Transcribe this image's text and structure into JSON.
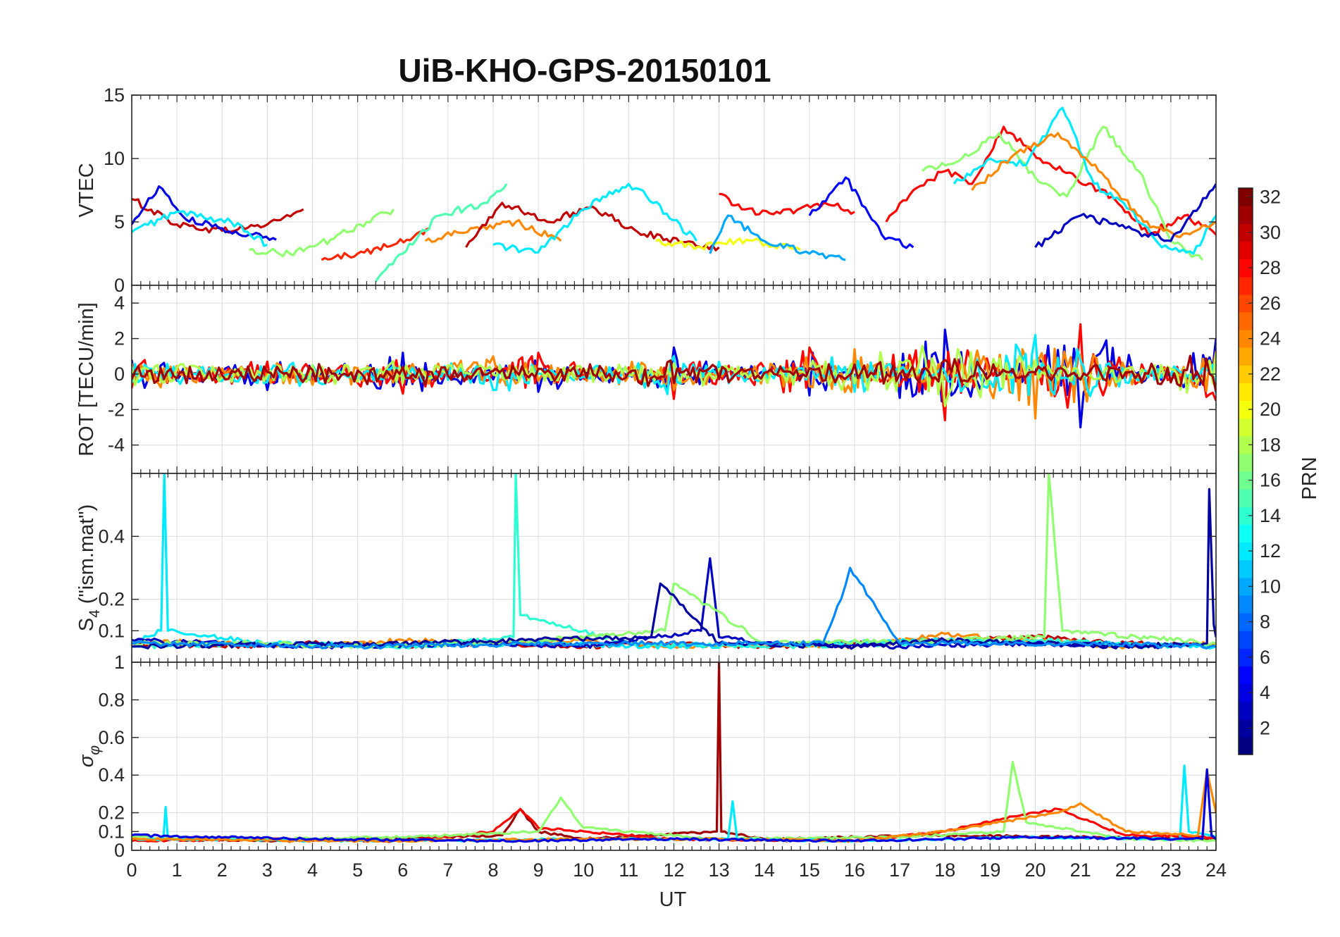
{
  "chart_data": {
    "type": "line",
    "title": "UiB-KHO-GPS-20150101",
    "xlabel": "UT",
    "xlim": [
      0,
      24
    ],
    "xticks": [
      0,
      1,
      2,
      3,
      4,
      5,
      6,
      7,
      8,
      9,
      10,
      11,
      12,
      13,
      14,
      15,
      16,
      17,
      18,
      19,
      20,
      21,
      22,
      23,
      24
    ],
    "grid": true,
    "colorbar": {
      "label": "PRN",
      "range": [
        1,
        32
      ],
      "ticks": [
        2,
        4,
        6,
        8,
        10,
        12,
        14,
        16,
        18,
        20,
        22,
        24,
        26,
        28,
        30,
        32
      ],
      "colormap": "jet"
    },
    "panels": [
      {
        "id": "vtec",
        "ylabel": "VTEC",
        "ylim": [
          0,
          15
        ],
        "yticks": [
          0,
          5,
          10,
          15
        ],
        "baseline": 4.5,
        "series": [
          {
            "x": [
              0,
              1,
              2,
              3,
              3.8
            ],
            "y": [
              6.8,
              4.8,
              4.3,
              4.8,
              6.0
            ],
            "prn": 30
          },
          {
            "x": [
              0,
              0.6,
              1.2,
              2,
              2.6,
              3.2
            ],
            "y": [
              4.8,
              7.8,
              5.2,
              4.5,
              4.0,
              3.6
            ],
            "prn": 4
          },
          {
            "x": [
              0,
              1,
              2.2,
              3
            ],
            "y": [
              4.2,
              5.8,
              5.0,
              3.2
            ],
            "prn": 12
          },
          {
            "x": [
              2.6,
              3.5,
              4.4,
              5.2,
              5.8
            ],
            "y": [
              2.8,
              2.5,
              3.6,
              5.0,
              6.0
            ],
            "prn": 17
          },
          {
            "x": [
              4.2,
              5,
              5.8,
              6.6
            ],
            "y": [
              2.0,
              2.5,
              3.2,
              4.5
            ],
            "prn": 27
          },
          {
            "x": [
              5.4,
              6,
              6.8,
              7.8,
              8.3
            ],
            "y": [
              0.3,
              2.5,
              5.5,
              6.5,
              8.0
            ],
            "prn": 15
          },
          {
            "x": [
              6.5,
              7.5,
              8.5,
              9.5
            ],
            "y": [
              3.5,
              4.5,
              5.0,
              3.5
            ],
            "prn": 24
          },
          {
            "x": [
              7.4,
              8.2,
              9.2,
              10.2,
              11.2,
              12.2,
              13
            ],
            "y": [
              3.0,
              6.5,
              5.0,
              6.2,
              4.2,
              3.4,
              3.0
            ],
            "prn": 30
          },
          {
            "x": [
              8,
              9,
              10,
              11,
              11.4,
              12.5
            ],
            "y": [
              3.2,
              2.6,
              6.0,
              8.0,
              7.0,
              3.5
            ],
            "prn": 12
          },
          {
            "x": [
              11.6,
              12.6,
              13.6,
              14.8
            ],
            "y": [
              3.5,
              3.0,
              3.6,
              2.8
            ],
            "prn": 20
          },
          {
            "x": [
              12.8,
              13.2,
              14,
              15,
              15.8
            ],
            "y": [
              2.5,
              5.5,
              3.5,
              2.5,
              2.0
            ],
            "prn": 10
          },
          {
            "x": [
              13,
              13.5,
              14.2,
              15.4,
              16
            ],
            "y": [
              7.2,
              6.0,
              5.6,
              6.4,
              5.8
            ],
            "prn": 28
          },
          {
            "x": [
              15,
              15.8,
              16.6,
              17.3
            ],
            "y": [
              5.5,
              8.5,
              4.0,
              3.0
            ],
            "prn": 5
          },
          {
            "x": [
              16.7,
              17.3,
              18,
              18.6,
              19.3,
              20.1,
              20.9,
              21.7,
              22.5,
              23.3,
              24
            ],
            "y": [
              5.0,
              7.5,
              9.0,
              8.0,
              12.5,
              10.0,
              8.5,
              7.0,
              4.0,
              5.5,
              4.0
            ],
            "prn": 28
          },
          {
            "x": [
              17.5,
              18.3,
              19.2,
              20,
              20.7,
              21.5,
              22.3,
              23,
              23.7
            ],
            "y": [
              9.0,
              9.8,
              12.0,
              8.5,
              7.0,
              12.5,
              9.0,
              3.5,
              2.0
            ],
            "prn": 17
          },
          {
            "x": [
              18.2,
              19,
              19.8,
              20.6,
              21.3,
              22.1,
              22.8,
              23.5,
              24
            ],
            "y": [
              8.0,
              10.0,
              9.5,
              14.0,
              8.0,
              6.0,
              3.0,
              2.5,
              5.5
            ],
            "prn": 12
          },
          {
            "x": [
              18.6,
              19.6,
              20.5,
              21.4,
              22.4,
              23.2,
              24
            ],
            "y": [
              7.5,
              10.5,
              12.0,
              9.0,
              5.0,
              3.8,
              5.0
            ],
            "prn": 24
          },
          {
            "x": [
              20,
              21,
              22,
              23,
              24
            ],
            "y": [
              3.0,
              5.5,
              4.5,
              3.5,
              8.0
            ],
            "prn": 3
          }
        ]
      },
      {
        "id": "rot",
        "ylabel": "ROT [TECU/min]",
        "ylim": [
          -5.6,
          5.0
        ],
        "yticks": [
          -4,
          -2,
          0,
          2,
          4
        ],
        "baseline": 0,
        "series": [
          {
            "x": [
              0,
              3,
              6,
              9,
              12,
              15,
              18,
              21,
              24
            ],
            "y": [
              0.8,
              -0.9,
              1.2,
              -1.0,
              1.5,
              -1.2,
              2.5,
              -3.0,
              2.0
            ],
            "prn": 4
          },
          {
            "x": [
              0,
              3,
              6,
              9,
              12,
              15,
              18,
              21,
              24
            ],
            "y": [
              -0.8,
              0.7,
              -1.1,
              1.2,
              -1.4,
              1.5,
              -2.6,
              2.8,
              -1.5
            ],
            "prn": 28
          },
          {
            "x": [
              0,
              4,
              8,
              12,
              16,
              20,
              24
            ],
            "y": [
              0.6,
              -0.6,
              1.0,
              -0.9,
              1.4,
              -2.5,
              1.3
            ],
            "prn": 24
          },
          {
            "x": [
              0,
              4,
              8,
              12,
              16,
              20,
              24
            ],
            "y": [
              -0.5,
              0.5,
              -0.9,
              1.0,
              -1.0,
              2.2,
              -1.1
            ],
            "prn": 12
          },
          {
            "x": [
              0,
              6,
              12,
              18,
              24
            ],
            "y": [
              0.4,
              -0.5,
              0.6,
              -1.8,
              1.2
            ],
            "prn": 18
          },
          {
            "x": [
              0,
              6,
              12,
              18,
              24
            ],
            "y": [
              -0.3,
              0.4,
              -0.5,
              0.8,
              -1.0
            ],
            "prn": 31
          }
        ]
      },
      {
        "id": "s4",
        "ylabel": "S4 (\"ism.mat\")",
        "ylim": [
          0,
          0.6
        ],
        "yticks": [
          0.1,
          0.2,
          0.4
        ],
        "baseline": 0.06,
        "series": [
          {
            "x": [
              0,
              2,
              4,
              6,
              8,
              10,
              12,
              14,
              16,
              18,
              20,
              22,
              24
            ],
            "y": [
              0.06,
              0.05,
              0.06,
              0.05,
              0.06,
              0.05,
              0.06,
              0.05,
              0.06,
              0.07,
              0.08,
              0.06,
              0.05
            ],
            "prn": 30
          },
          {
            "x": [
              0,
              2,
              4,
              6,
              8,
              10,
              12,
              14,
              16,
              18,
              20,
              22,
              24
            ],
            "y": [
              0.07,
              0.06,
              0.05,
              0.07,
              0.06,
              0.07,
              0.05,
              0.06,
              0.05,
              0.09,
              0.07,
              0.05,
              0.06
            ],
            "prn": 24
          },
          {
            "x": [
              0,
              0.65,
              0.72,
              0.8,
              3,
              6,
              9,
              12,
              15,
              18,
              21,
              24
            ],
            "y": [
              0.06,
              0.1,
              0.6,
              0.1,
              0.06,
              0.05,
              0.06,
              0.05,
              0.06,
              0.07,
              0.06,
              0.05
            ],
            "prn": 12
          },
          {
            "x": [
              0,
              3,
              6,
              8.45,
              8.5,
              8.6,
              11,
              14,
              17,
              20,
              23
            ],
            "y": [
              0.05,
              0.06,
              0.05,
              0.08,
              0.6,
              0.15,
              0.06,
              0.05,
              0.06,
              0.07,
              0.05
            ],
            "prn": 14
          },
          {
            "x": [
              0,
              4,
              8,
              10,
              12.6,
              12.8,
              13,
              14,
              17,
              20,
              23
            ],
            "y": [
              0.07,
              0.05,
              0.06,
              0.05,
              0.1,
              0.33,
              0.08,
              0.06,
              0.05,
              0.06,
              0.05
            ],
            "prn": 3
          },
          {
            "x": [
              0,
              3.5,
              4,
              8,
              11.8,
              12,
              14,
              18,
              20.2,
              20.3,
              20.6,
              24
            ],
            "y": [
              0.06,
              0.06,
              0.05,
              0.06,
              0.1,
              0.25,
              0.06,
              0.07,
              0.08,
              0.6,
              0.1,
              0.06
            ],
            "prn": 17
          },
          {
            "x": [
              0,
              6,
              11.5,
              11.7,
              13,
              16,
              18,
              20,
              22,
              23.8,
              23.85,
              23.95,
              24
            ],
            "y": [
              0.05,
              0.06,
              0.08,
              0.25,
              0.06,
              0.05,
              0.07,
              0.06,
              0.05,
              0.06,
              0.55,
              0.12,
              0.08
            ],
            "prn": 2
          },
          {
            "x": [
              0,
              5,
              10,
              15.3,
              15.7,
              15.9,
              17,
              21,
              24
            ],
            "y": [
              0.06,
              0.05,
              0.06,
              0.06,
              0.2,
              0.3,
              0.06,
              0.06,
              0.05
            ],
            "prn": 9
          }
        ]
      },
      {
        "id": "sigma_phi",
        "ylabel": "σφ",
        "ylim": [
          0,
          1
        ],
        "yticks": [
          0,
          0.1,
          0.2,
          0.4,
          0.6,
          0.8,
          1
        ],
        "baseline": 0.07,
        "series": [
          {
            "x": [
              0,
              4,
              8.2,
              8.6,
              9,
              10,
              12.95,
              13,
              13.05,
              14,
              18,
              21,
              24
            ],
            "y": [
              0.06,
              0.05,
              0.08,
              0.22,
              0.1,
              0.06,
              0.1,
              1.0,
              0.1,
              0.06,
              0.08,
              0.07,
              0.06
            ],
            "prn": 31
          },
          {
            "x": [
              0,
              3,
              6,
              8,
              8.6,
              9,
              12,
              16,
              18,
              19.5,
              20.5,
              22,
              24
            ],
            "y": [
              0.05,
              0.06,
              0.05,
              0.1,
              0.22,
              0.12,
              0.06,
              0.05,
              0.1,
              0.18,
              0.22,
              0.08,
              0.07
            ],
            "prn": 28
          },
          {
            "x": [
              0,
              3,
              6,
              9,
              9.5,
              10,
              13,
              17,
              19.3,
              19.5,
              19.8,
              22,
              24
            ],
            "y": [
              0.07,
              0.06,
              0.07,
              0.1,
              0.28,
              0.12,
              0.06,
              0.07,
              0.1,
              0.47,
              0.15,
              0.06,
              0.05
            ],
            "prn": 17
          },
          {
            "x": [
              0,
              0.7,
              0.75,
              0.8,
              5,
              10,
              13.2,
              13.3,
              13.4,
              16,
              20,
              23.2,
              23.3,
              23.4,
              24
            ],
            "y": [
              0.06,
              0.06,
              0.23,
              0.06,
              0.05,
              0.06,
              0.06,
              0.26,
              0.06,
              0.05,
              0.07,
              0.06,
              0.45,
              0.1,
              0.07
            ],
            "prn": 12
          },
          {
            "x": [
              0,
              5,
              10,
              13,
              16,
              18,
              20.5,
              21,
              22,
              23.6,
              23.8,
              24
            ],
            "y": [
              0.06,
              0.05,
              0.06,
              0.06,
              0.05,
              0.1,
              0.2,
              0.25,
              0.1,
              0.08,
              0.42,
              0.2
            ],
            "prn": 24
          },
          {
            "x": [
              0,
              4,
              8,
              12,
              16,
              20,
              23.7,
              23.8,
              23.9,
              24
            ],
            "y": [
              0.08,
              0.06,
              0.05,
              0.06,
              0.05,
              0.07,
              0.06,
              0.43,
              0.08,
              0.06
            ],
            "prn": 4
          }
        ]
      }
    ]
  }
}
